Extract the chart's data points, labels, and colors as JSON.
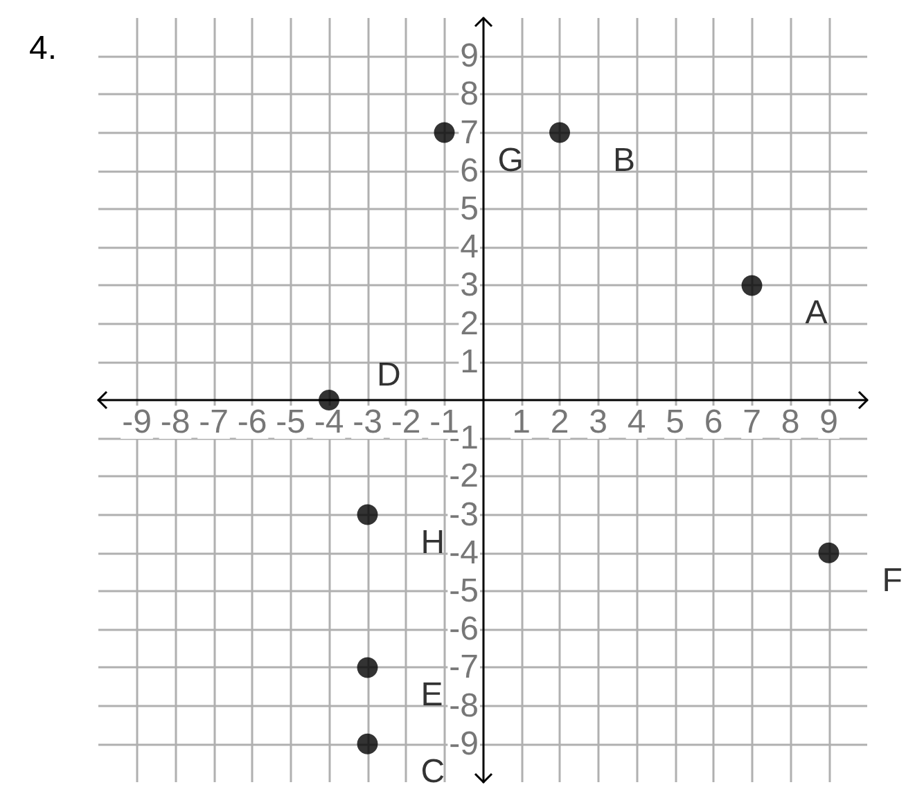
{
  "chart_data": {
    "type": "scatter",
    "title": "4.",
    "x": [
      7,
      2,
      -3,
      -4,
      -3,
      9,
      -1,
      -3
    ],
    "values": [
      3,
      7,
      -9,
      0,
      -7,
      -4,
      7,
      -3
    ],
    "value_labels": [
      "A",
      "B",
      "C",
      "D",
      "E",
      "F",
      "G",
      "H"
    ],
    "color": "#000000",
    "marker": "circle",
    "xlim": [
      -10,
      10
    ],
    "ylim": [
      -10,
      10
    ],
    "xticks": [
      -9,
      -8,
      -7,
      -6,
      -5,
      -4,
      -3,
      -2,
      -1,
      1,
      2,
      3,
      4,
      5,
      6,
      7,
      8,
      9
    ],
    "yticks": [
      -9,
      -8,
      -7,
      -6,
      -5,
      -4,
      -3,
      -2,
      -1,
      1,
      2,
      3,
      4,
      5,
      6,
      7,
      8,
      9
    ],
    "grid": true
  }
}
